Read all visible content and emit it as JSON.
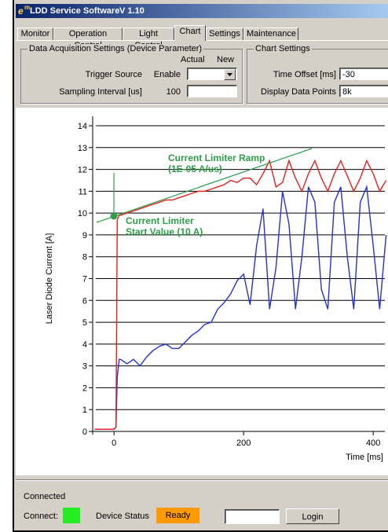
{
  "window": {
    "logo": "e",
    "logo_sup": "m",
    "title": "LDD Service Software",
    "version": "V 1.10"
  },
  "tabs": [
    "Monitor",
    "Operation Control",
    "Light Control",
    "Chart",
    "Settings",
    "Maintenance"
  ],
  "acquisition": {
    "title": "Data Acquisition Settings (Device Parameter)",
    "col_actual": "Actual",
    "col_new": "New",
    "rows": [
      {
        "label": "Trigger Source",
        "actual": "Enable"
      },
      {
        "label": "Sampling Interval [us]",
        "actual": "100"
      }
    ]
  },
  "chart_settings": {
    "title": "Chart Settings",
    "rows": [
      {
        "label": "Time Offset [ms]",
        "value": "-30"
      },
      {
        "label": "Display Data Points",
        "value": "8k"
      }
    ]
  },
  "chart_data": {
    "type": "line",
    "xlabel": "Time [ms]",
    "ylabel": "Laser Diode Current [A]",
    "x": [
      -30,
      -20,
      -10,
      0,
      3,
      5,
      8,
      10,
      20,
      30,
      40,
      50,
      60,
      70,
      80,
      90,
      100,
      110,
      120,
      130,
      140,
      150,
      160,
      170,
      180,
      190,
      200,
      210,
      220,
      230,
      240,
      250,
      260,
      270,
      280,
      290,
      300,
      310,
      320,
      330,
      340,
      350,
      360,
      370,
      380,
      390,
      400,
      410,
      420
    ],
    "series": [
      {
        "name": "Current Limiter",
        "color": "#e8201c",
        "values": [
          0.1,
          0.1,
          0.1,
          0.1,
          0.2,
          9.7,
          9.9,
          9.9,
          10.0,
          10.1,
          10.2,
          10.3,
          10.4,
          10.5,
          10.6,
          10.6,
          10.7,
          10.8,
          10.9,
          11.0,
          11.0,
          11.1,
          11.2,
          11.3,
          11.5,
          11.4,
          11.6,
          11.6,
          11.3,
          11.8,
          12.4,
          11.2,
          11.4,
          12.4,
          11.6,
          11.0,
          11.8,
          12.4,
          11.6,
          11.0,
          11.8,
          12.4,
          11.7,
          11.0,
          11.6,
          12.4,
          11.8,
          11.0,
          11.5
        ]
      },
      {
        "name": "Laser Diode Current",
        "color": "#2530d8",
        "values": [
          0.1,
          0.1,
          0.1,
          0.1,
          0.2,
          2.5,
          3.3,
          3.3,
          3.1,
          3.3,
          3.0,
          3.4,
          3.7,
          3.9,
          4.0,
          3.8,
          3.8,
          4.1,
          4.4,
          4.6,
          4.9,
          5.0,
          5.6,
          5.9,
          6.3,
          6.9,
          7.2,
          5.8,
          8.5,
          10.2,
          5.6,
          7.5,
          11.0,
          9.5,
          5.6,
          8.0,
          11.2,
          10.5,
          6.5,
          5.6,
          10.5,
          11.2,
          8.0,
          5.6,
          10.5,
          11.2,
          8.5,
          5.6,
          9.0
        ]
      }
    ],
    "xlim": [
      -33,
      418
    ],
    "ylim": [
      0,
      14
    ],
    "xticks": [
      0,
      200,
      400
    ],
    "yticks": [
      0,
      1,
      2,
      3,
      4,
      5,
      6,
      7,
      8,
      9,
      10,
      11,
      12,
      13,
      14
    ],
    "grid": true,
    "annotation_color": "#2e9e4a",
    "annotations": [
      "Current Limiter Ramp",
      "(1E-05 A/us)",
      "Current Limiter",
      "Start Value (10 A)"
    ]
  },
  "status": {
    "connection": "Connected",
    "connect_label": "Connect:",
    "device_status_label": "Device Status",
    "device_status": "Ready",
    "login": "Login"
  }
}
